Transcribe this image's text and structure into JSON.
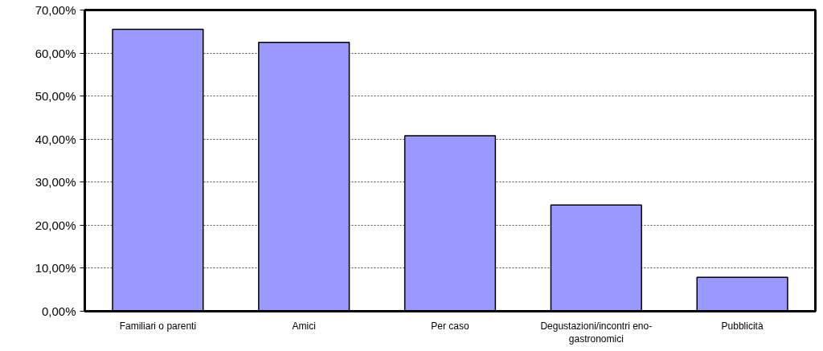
{
  "chart_data": {
    "type": "bar",
    "categories": [
      "Familiari o parenti",
      "Amici",
      "Per caso",
      "Degustazioni/incontri eno-gastronomici",
      "Pubblicità"
    ],
    "values": [
      65.5,
      62.5,
      40.8,
      24.7,
      7.9
    ],
    "color": "#9999ff",
    "ylim": [
      0,
      70
    ],
    "yticks": [
      {
        "value": 0,
        "label": "0,00%"
      },
      {
        "value": 10,
        "label": "10,00%"
      },
      {
        "value": 20,
        "label": "20,00%"
      },
      {
        "value": 30,
        "label": "30,00%"
      },
      {
        "value": 40,
        "label": "40,00%"
      },
      {
        "value": 50,
        "label": "50,00%"
      },
      {
        "value": 60,
        "label": "60,00%"
      },
      {
        "value": 70,
        "label": "70,00%"
      }
    ],
    "grid": "y"
  }
}
